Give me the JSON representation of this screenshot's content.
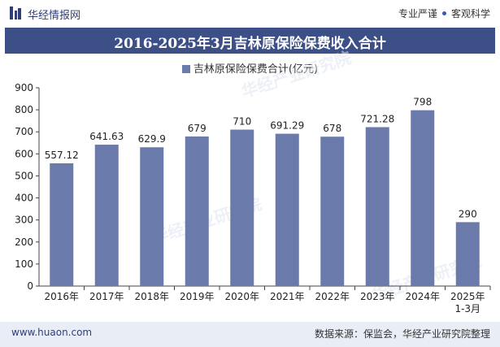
{
  "header": {
    "brand": "华经情报网",
    "tags": [
      "专业严谨",
      "客观科学"
    ]
  },
  "chart_data": {
    "type": "bar",
    "title": "2016-2025年3月吉林原保险保费收入合计",
    "series": [
      {
        "name": "吉林原保险保费合计(亿元)",
        "color": "#6a7aaa",
        "values": [
          557.12,
          641.63,
          629.9,
          679,
          710,
          691.29,
          678,
          721.28,
          798,
          290
        ],
        "labels": [
          "557.12",
          "641.63",
          "629.9",
          "679",
          "710",
          "691.29",
          "678",
          "721.28",
          "798",
          "290"
        ]
      }
    ],
    "categories": [
      "2016年",
      "2017年",
      "2018年",
      "2019年",
      "2020年",
      "2021年",
      "2022年",
      "2023年",
      "2024年",
      "2025年\n1-3月"
    ],
    "ylim": [
      0,
      900
    ],
    "yticks": [
      0,
      100,
      200,
      300,
      400,
      500,
      600,
      700,
      800,
      900
    ],
    "grid": false,
    "legend_position": "top"
  },
  "watermark": "华经产业研究院",
  "footer": {
    "url": "www.huaon.com",
    "source": "数据来源：保监会，华经产业研究院整理"
  }
}
